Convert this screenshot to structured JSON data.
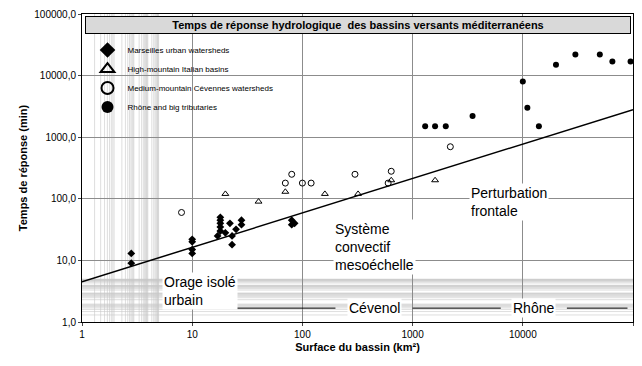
{
  "chart_data": {
    "type": "scatter",
    "title": "Temps de réponse hydrologique  des bassins versants méditerranéens",
    "x_label": "Surface du bassin (km²)",
    "y_label": "Temps de réponse (min)",
    "log": true,
    "grid": true,
    "legend": "upper left",
    "xlim": [
      1,
      100000
    ],
    "ylim": [
      1,
      100000
    ],
    "xticks": [
      1,
      10,
      100,
      1000,
      10000,
      100000
    ],
    "yticks": [
      {
        "value": 1,
        "label": "1,0"
      },
      {
        "value": 10,
        "label": "10,0"
      },
      {
        "value": 100,
        "label": "100,0"
      },
      {
        "value": 1000,
        "label": "1000,0"
      },
      {
        "value": 10000,
        "label": "10000,0"
      },
      {
        "value": 100000,
        "label": "100000,0"
      }
    ],
    "series": [
      {
        "name": "Marseilles urban watersheds",
        "type": "scatter",
        "marker": "diamond",
        "color": "#000000",
        "x": [
          2.8,
          2.8,
          10,
          10,
          10,
          10,
          17,
          18,
          18,
          18,
          18,
          18,
          20,
          22,
          23,
          23,
          25,
          28,
          28,
          80,
          80,
          85
        ],
        "values": [
          9,
          13,
          13,
          15,
          20,
          22,
          25,
          30,
          35,
          40,
          45,
          50,
          28,
          40,
          18,
          25,
          32,
          45,
          38,
          38,
          45,
          40
        ]
      },
      {
        "name": "High-mountain Italian basins",
        "type": "scatter",
        "marker": "triangle-up-open",
        "color": "#000000",
        "x": [
          20,
          40,
          70,
          160,
          320,
          640,
          1600
        ],
        "values": [
          120,
          90,
          130,
          120,
          120,
          200,
          200
        ]
      },
      {
        "name": "Medium-mountain Cévennes watersheds",
        "type": "scatter",
        "marker": "circle-open",
        "color": "#000000",
        "x": [
          8,
          70,
          80,
          100,
          120,
          300,
          600,
          640,
          2200
        ],
        "values": [
          60,
          180,
          250,
          180,
          180,
          250,
          180,
          280,
          700
        ]
      },
      {
        "name": "Rhône and big tributaries",
        "type": "scatter",
        "marker": "circle",
        "color": "#000000",
        "x": [
          1300,
          1600,
          2000,
          3500,
          10000,
          11000,
          14000,
          20000,
          30000,
          50000,
          65000,
          95000
        ],
        "values": [
          1500,
          1500,
          1500,
          2200,
          8000,
          3000,
          1500,
          15000,
          22000,
          22000,
          17000,
          17000
        ]
      },
      {
        "type": "line",
        "line_style": "solid",
        "color": "#000000",
        "x": [
          1,
          100000
        ],
        "values": [
          4.5,
          2800
        ]
      }
    ],
    "annotations": [
      "Perturbation\nfrontale",
      "Système\nconvectif\nmesoéchelle",
      "Orage isolé\nurbain",
      "Cévenol",
      "Rhône"
    ]
  }
}
